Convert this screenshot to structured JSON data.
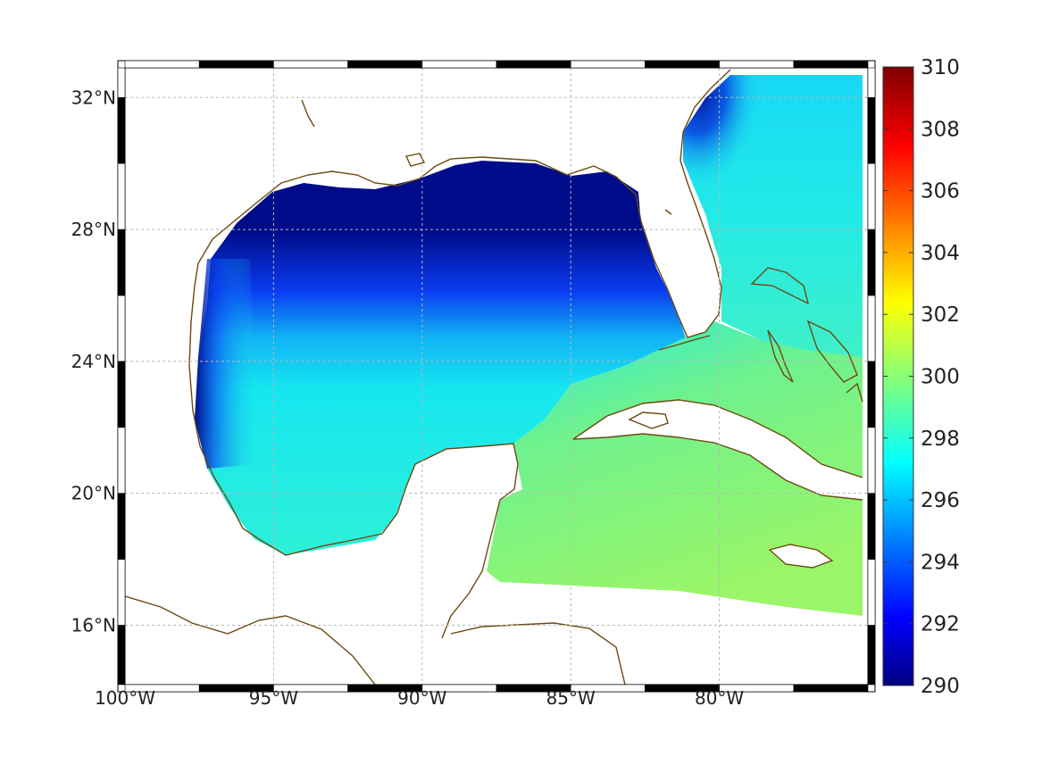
{
  "map": {
    "projection": "equirectangular",
    "lon_range": [
      -100,
      -75
    ],
    "lat_range": [
      14.2,
      32.9
    ],
    "lon_ticks": [
      {
        "value": -100,
        "label": "100°W"
      },
      {
        "value": -95,
        "label": "95°W"
      },
      {
        "value": -90,
        "label": "90°W"
      },
      {
        "value": -85,
        "label": "85°W"
      },
      {
        "value": -80,
        "label": "80°W"
      }
    ],
    "lat_ticks": [
      {
        "value": 16,
        "label": "16°N"
      },
      {
        "value": 20,
        "label": "20°N"
      },
      {
        "value": 24,
        "label": "24°N"
      },
      {
        "value": 28,
        "label": "28°N"
      },
      {
        "value": 32,
        "label": "32°N"
      }
    ],
    "grid": true,
    "coastline_color": "#6b4a10",
    "land_color": "#ffffff"
  },
  "colorbar": {
    "min": 290,
    "max": 310,
    "colormap": "jet",
    "ticks": [
      {
        "value": 290,
        "label": "290"
      },
      {
        "value": 292,
        "label": "292"
      },
      {
        "value": 294,
        "label": "294"
      },
      {
        "value": 296,
        "label": "296"
      },
      {
        "value": 298,
        "label": "298"
      },
      {
        "value": 300,
        "label": "300"
      },
      {
        "value": 302,
        "label": "302"
      },
      {
        "value": 304,
        "label": "304"
      },
      {
        "value": 306,
        "label": "306"
      },
      {
        "value": 308,
        "label": "308"
      },
      {
        "value": 310,
        "label": "310"
      }
    ]
  },
  "field_colors": {
    "cold": "#000c8a",
    "mid_blue": "#0a3cf0",
    "cyan": "#16e6f0",
    "cyan_green": "#3ff0c8",
    "green": "#8cf56e"
  }
}
